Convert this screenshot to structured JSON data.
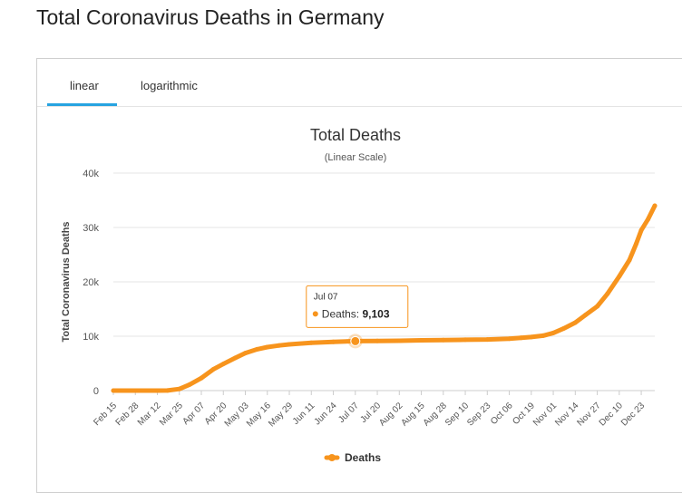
{
  "page": {
    "title": "Total Coronavirus Deaths in Germany"
  },
  "tabs": [
    {
      "label": "linear",
      "active": true
    },
    {
      "label": "logarithmic",
      "active": false
    }
  ],
  "colors": {
    "series": "#f7941d",
    "tab_accent": "#27a3e0",
    "grid": "#e6e6e6"
  },
  "tooltip": {
    "date": "Jul 07",
    "label": "Deaths: ",
    "value": "9,103"
  },
  "chart_data": {
    "type": "line",
    "title": "Total Deaths",
    "subtitle": "(Linear Scale)",
    "ylabel": "Total Coronavirus Deaths",
    "xlabel": "",
    "ylim": [
      0,
      40000
    ],
    "y_ticks": [
      0,
      10000,
      20000,
      30000,
      40000
    ],
    "y_tick_labels": [
      "0",
      "10k",
      "20k",
      "30k",
      "40k"
    ],
    "x_tick_labels": [
      "Feb 15",
      "Feb 28",
      "Mar 12",
      "Mar 25",
      "Apr 07",
      "Apr 20",
      "May 03",
      "May 16",
      "May 29",
      "Jun 11",
      "Jun 24",
      "Jul 07",
      "Jul 20",
      "Aug 02",
      "Aug 15",
      "Aug 28",
      "Sep 10",
      "Sep 23",
      "Oct 06",
      "Oct 19",
      "Nov 01",
      "Nov 14",
      "Nov 27",
      "Dec 10",
      "Dec 23"
    ],
    "grid": true,
    "legend": "bottom-center",
    "series": [
      {
        "name": "Deaths",
        "x": [
          "Feb 15",
          "Mar 12",
          "Mar 18",
          "Mar 25",
          "Mar 31",
          "Apr 07",
          "Apr 14",
          "Apr 20",
          "Apr 27",
          "May 03",
          "May 10",
          "May 16",
          "May 23",
          "May 29",
          "Jun 11",
          "Jun 24",
          "Jul 07",
          "Jul 20",
          "Aug 02",
          "Aug 15",
          "Aug 28",
          "Sep 10",
          "Sep 23",
          "Oct 06",
          "Oct 13",
          "Oct 19",
          "Oct 26",
          "Nov 01",
          "Nov 07",
          "Nov 14",
          "Nov 20",
          "Nov 27",
          "Dec 03",
          "Dec 10",
          "Dec 16",
          "Dec 20",
          "Dec 23",
          "Dec 27",
          "Dec 31"
        ],
        "values": [
          0,
          2,
          20,
          300,
          1100,
          2300,
          3900,
          4900,
          6000,
          6900,
          7600,
          8000,
          8300,
          8500,
          8800,
          8950,
          9103,
          9130,
          9170,
          9250,
          9300,
          9350,
          9400,
          9550,
          9700,
          9850,
          10100,
          10600,
          11400,
          12500,
          13900,
          15500,
          17800,
          21000,
          24000,
          27000,
          29500,
          31500,
          34000
        ]
      }
    ]
  }
}
